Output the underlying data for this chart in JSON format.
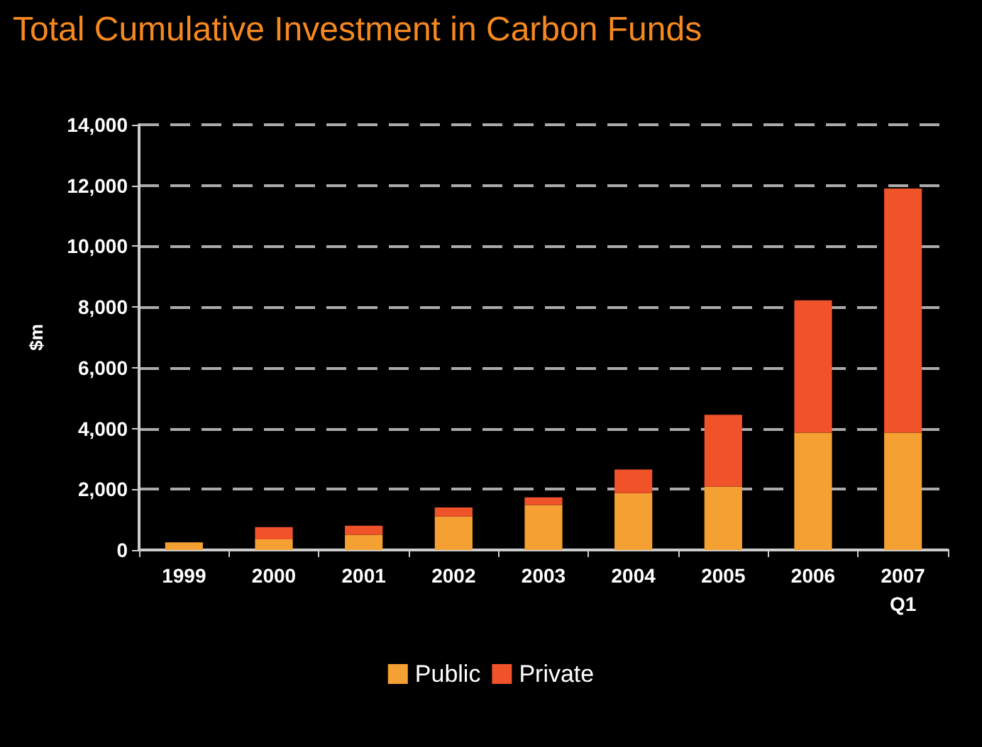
{
  "chart_data": {
    "type": "bar",
    "title": "Total Cumulative Investment in Carbon Funds",
    "ylabel": "$m",
    "categories": [
      "1999",
      "2000",
      "2001",
      "2002",
      "2003",
      "2004",
      "2005",
      "2006",
      "2007\nQ1"
    ],
    "series": [
      {
        "name": "Public",
        "color": "#f5a033",
        "values": [
          250,
          350,
          500,
          1100,
          1480,
          1870,
          2090,
          3860,
          3860
        ]
      },
      {
        "name": "Private",
        "color": "#f0522a",
        "values": [
          0,
          400,
          300,
          300,
          250,
          780,
          2360,
          4360,
          8040
        ]
      }
    ],
    "stacked": true,
    "ylim": [
      0,
      14000
    ],
    "yticks": [
      0,
      {
        "value": 2000,
        "label": "2,000"
      },
      {
        "value": 4000,
        "label": "4,000"
      },
      {
        "value": 6000,
        "label": "6,000"
      },
      {
        "value": 8000,
        "label": "8,000"
      },
      {
        "value": 10000,
        "label": "10,000"
      },
      {
        "value": 12000,
        "label": "12,000"
      },
      {
        "value": 14000,
        "label": "14,000"
      }
    ],
    "grid": "y",
    "legend": "bottom"
  }
}
